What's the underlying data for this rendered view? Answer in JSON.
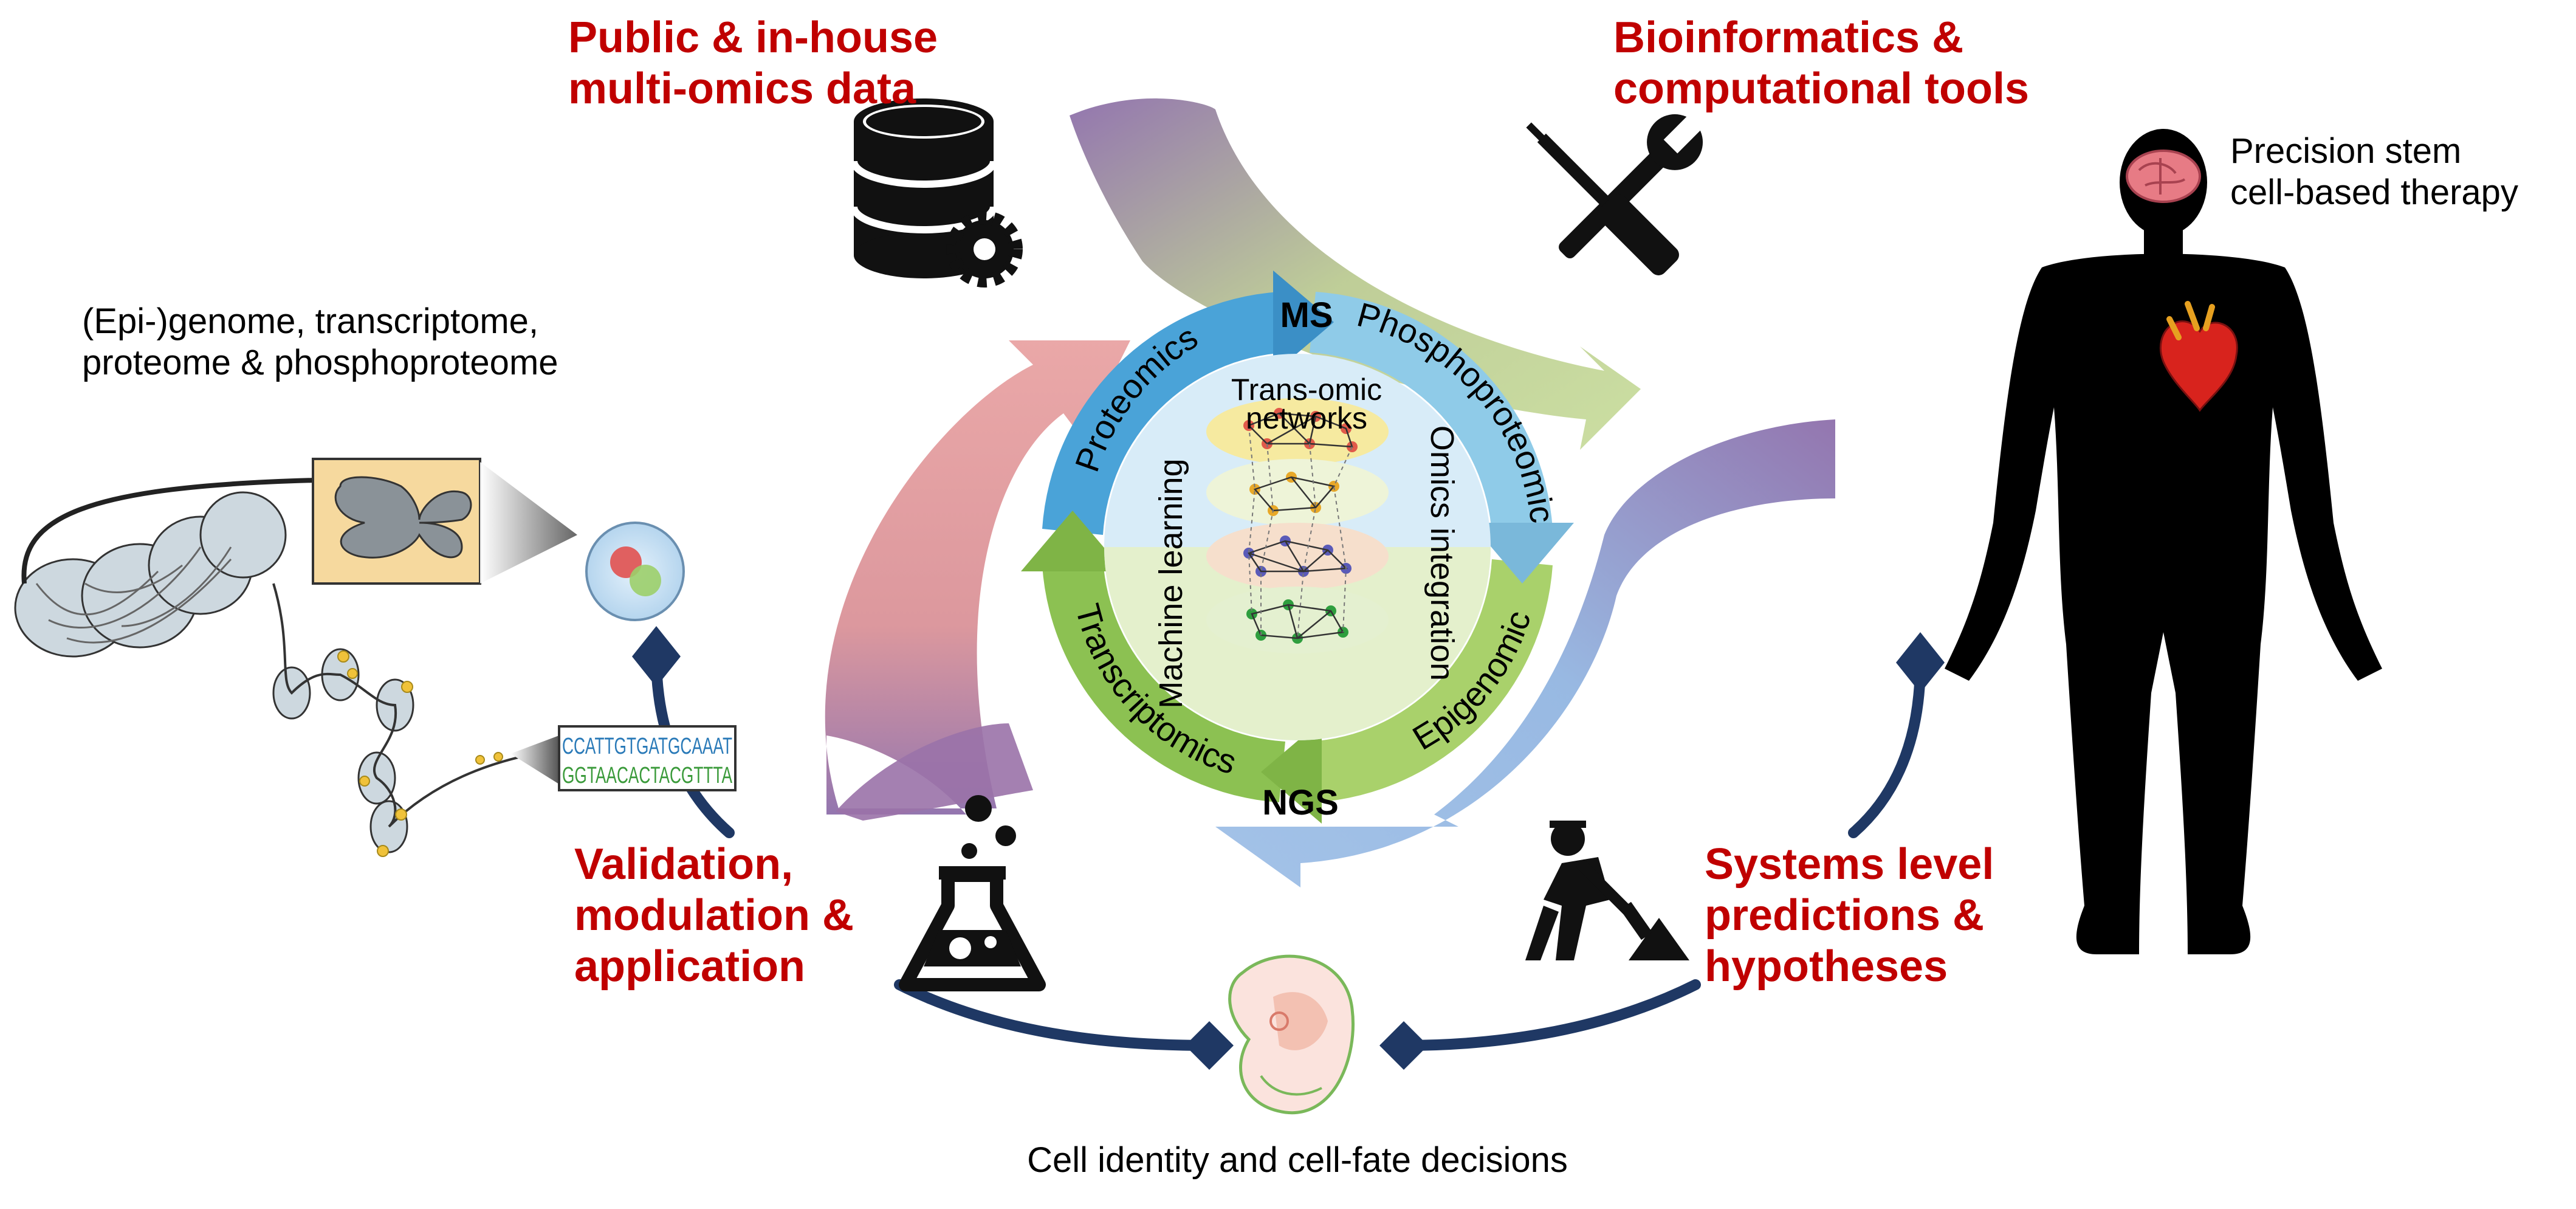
{
  "headings": {
    "public_data_line1": "Public & in-house",
    "public_data_line2": "multi-omics data",
    "bioinformatics_line1": "Bioinformatics &",
    "bioinformatics_line2": "computational tools",
    "validation_line1": "Validation,",
    "validation_line2": "modulation &",
    "validation_line3": "application",
    "systems_line1": "Systems level",
    "systems_line2": "predictions &",
    "systems_line3": "hypotheses"
  },
  "labels": {
    "epigenome_line1": "(Epi-)genome, transcriptome,",
    "epigenome_line2": "proteome & phosphoproteome",
    "therapy_line1": "Precision stem",
    "therapy_line2": "cell-based therapy",
    "cell_identity": "Cell identity and cell-fate decisions"
  },
  "cycle": {
    "proteomics": "Proteomics",
    "phosphoproteomics": "Phosphoproteomics",
    "epigenomics": "Epigenomics",
    "transcriptomics": "Transcriptomics",
    "ms": "MS",
    "ngs": "NGS",
    "trans_omic_line1": "Trans-omic",
    "trans_omic_line2": "networks",
    "machine_learning": "Machine learning",
    "omics_integration": "Omics integration"
  },
  "dna": {
    "seq_line1": "CCATTGTGATGCAAAT",
    "seq_line2": "GGTAACACTACGTTTA"
  },
  "colors": {
    "heading_red": "#c00000",
    "proteomics_blue": "#4aa3d8",
    "phospho_lightblue": "#8fcbe8",
    "green": "#8cc152",
    "light_green": "#b7d98a",
    "pink": "#e39a9a",
    "purple": "#8a6aa8",
    "navy": "#1f3864"
  }
}
